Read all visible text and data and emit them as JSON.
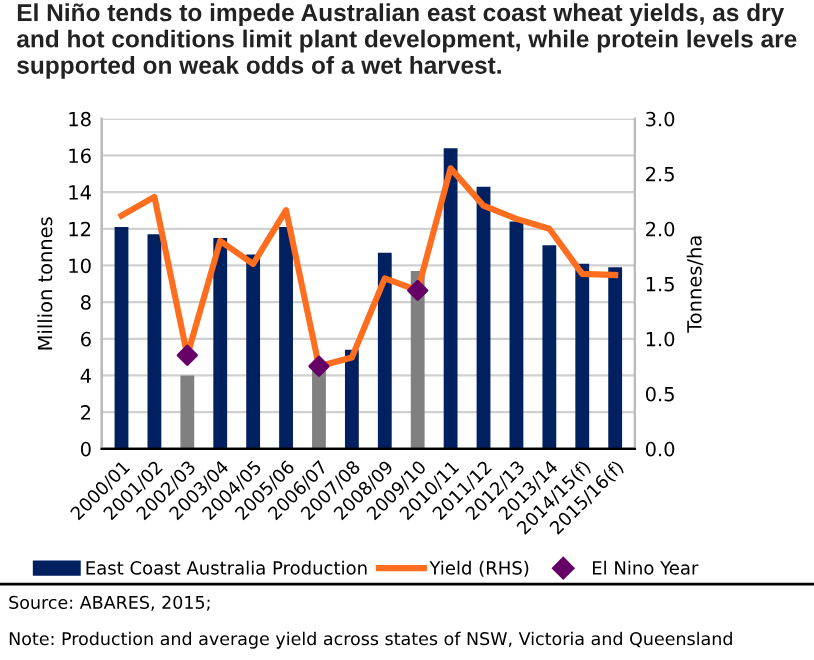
{
  "chart_data": {
    "type": "bar",
    "title": "El Niño tends to impede Australian east coast wheat yields, as dry and hot conditions limit plant development, while protein levels are supported on weak odds of a wet harvest.",
    "ylabel": "Million tonnes",
    "y2label": "Tonnes/ha",
    "categories": [
      "2000/01",
      "2001/02",
      "2002/03",
      "2003/04",
      "2004/05",
      "2005/06",
      "2006/07",
      "2007/08",
      "2008/09",
      "2009/10",
      "2010/11",
      "2011/12",
      "2012/13",
      "2013/14",
      "2014/15(f)",
      "2015/16(f)"
    ],
    "series": [
      {
        "name": "East Coast Australia Production",
        "color": "#002060",
        "colors": [
          "#002060",
          "#002060",
          "#808080",
          "#002060",
          "#002060",
          "#002060",
          "#808080",
          "#002060",
          "#002060",
          "#808080",
          "#002060",
          "#002060",
          "#002060",
          "#002060",
          "#002060",
          "#002060"
        ],
        "values": [
          12.1,
          11.7,
          4.0,
          11.5,
          10.6,
          12.1,
          4.3,
          5.4,
          10.7,
          9.7,
          16.4,
          14.3,
          12.4,
          11.1,
          10.1,
          9.9
        ]
      },
      {
        "name": "Yield (RHS)",
        "type": "line",
        "axis": "y2",
        "color": "#ff6d1f",
        "marker": "none",
        "line_style": "solid",
        "values": [
          2.12,
          2.29,
          0.85,
          1.89,
          1.68,
          2.17,
          0.75,
          0.83,
          1.55,
          1.44,
          2.55,
          2.21,
          2.09,
          2.0,
          1.59,
          1.58
        ]
      },
      {
        "name": "El Nino Year",
        "type": "scatter",
        "axis": "y2",
        "color": "#660066",
        "marker": "diamond",
        "x": [
          "2002/03",
          "2006/07",
          "2009/10"
        ],
        "values": [
          0.85,
          0.75,
          1.44
        ]
      }
    ],
    "ylim": [
      0,
      18
    ],
    "yticks": [
      0,
      2,
      4,
      6,
      8,
      10,
      12,
      14,
      16,
      18
    ],
    "y2lim": [
      0,
      3
    ],
    "y2ticks": [
      {
        "value": 0,
        "label": "0.0"
      },
      {
        "value": 0.5,
        "label": "0.5"
      },
      {
        "value": 1,
        "label": "1.0"
      },
      {
        "value": 1.5,
        "label": "1.5"
      },
      {
        "value": 2,
        "label": "2.0"
      },
      {
        "value": 2.5,
        "label": "2.5"
      },
      {
        "value": 3,
        "label": "3.0"
      }
    ],
    "grid": "y",
    "legend": "bottom",
    "annotations": [
      "Source: ABARES, 2015;",
      "Note: Production and average yield across states of NSW, Victoria and Queensland"
    ]
  }
}
